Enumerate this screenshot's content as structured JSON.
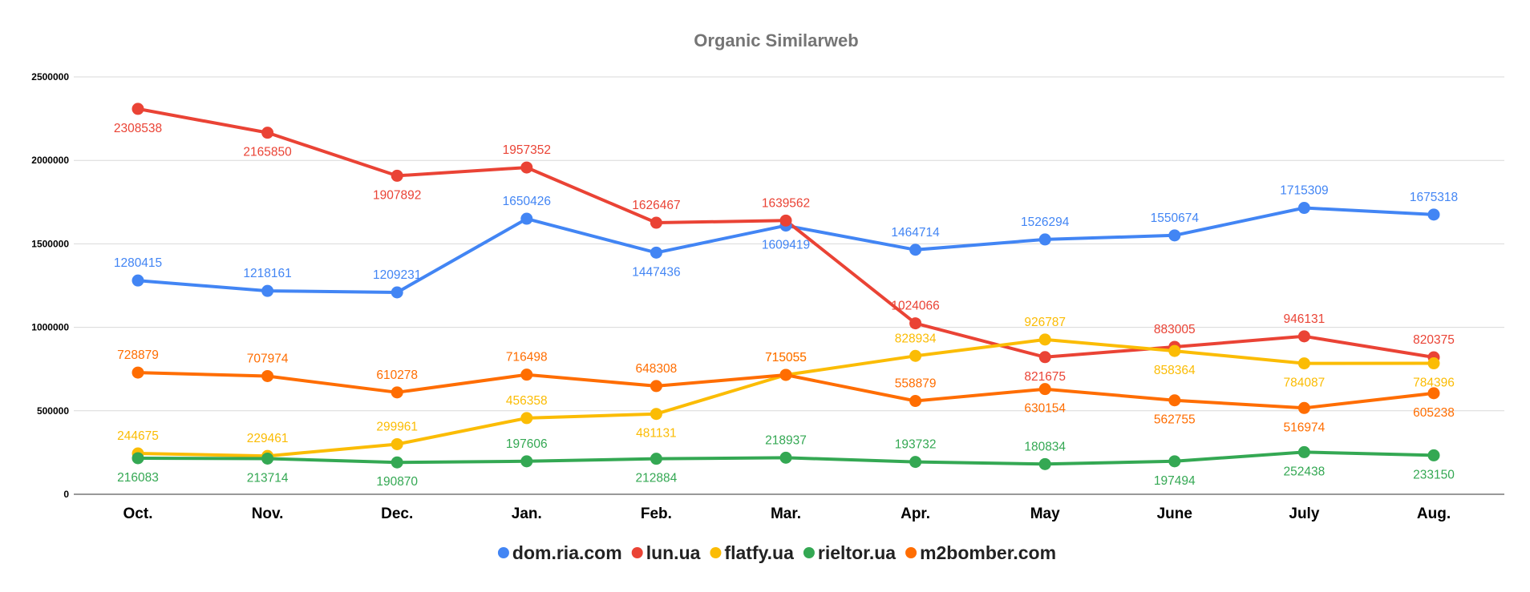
{
  "chart_data": {
    "type": "line",
    "title": "Organic Similarweb",
    "xlabel": "",
    "ylabel": "",
    "ylim": [
      0,
      2500000
    ],
    "yticks": [
      0,
      500000,
      1000000,
      1500000,
      2000000,
      2500000
    ],
    "grid": true,
    "legend_position": "bottom",
    "categories": [
      "Oct.",
      "Nov.",
      "Dec.",
      "Jan.",
      "Feb.",
      "Mar.",
      "Apr.",
      "May",
      "June",
      "July",
      "Aug."
    ],
    "series": [
      {
        "name": "dom.ria.com",
        "color": "#4285f4",
        "values": [
          1280415,
          1218161,
          1209231,
          1650426,
          1447436,
          1609419,
          1464714,
          1526294,
          1550674,
          1715309,
          1675318
        ],
        "label_pos": [
          "above",
          "above",
          "above",
          "above",
          "below",
          "below",
          "above",
          "above",
          "above",
          "above",
          "above"
        ]
      },
      {
        "name": "lun.ua",
        "color": "#ea4335",
        "values": [
          2308538,
          2165850,
          1907892,
          1957352,
          1626467,
          1639562,
          1024066,
          821675,
          883005,
          946131,
          820375
        ],
        "label_pos": [
          "below",
          "below",
          "below",
          "above",
          "above",
          "above",
          "above",
          "below",
          "above",
          "above",
          "above"
        ]
      },
      {
        "name": "flatfy.ua",
        "color": "#fbbc04",
        "values": [
          244675,
          229461,
          299961,
          456358,
          481131,
          715055,
          828934,
          926787,
          858364,
          784087,
          784396
        ],
        "label_pos": [
          "above",
          "above",
          "above",
          "above",
          "below",
          "above",
          "above",
          "above",
          "below",
          "below",
          "below"
        ]
      },
      {
        "name": "rieltor.ua",
        "color": "#34a853",
        "values": [
          216083,
          213714,
          190870,
          197606,
          212884,
          218937,
          193732,
          180834,
          197494,
          252438,
          233150
        ],
        "label_pos": [
          "below",
          "below",
          "below",
          "above",
          "below",
          "above",
          "above",
          "above",
          "below",
          "below",
          "below"
        ]
      },
      {
        "name": "m2bomber.com",
        "color": "#ff6d01",
        "values": [
          728879,
          707974,
          610278,
          716498,
          648308,
          715055,
          558879,
          630154,
          562755,
          516974,
          605238
        ],
        "label_pos": [
          "above",
          "above",
          "above",
          "above",
          "above",
          "above",
          "above",
          "below",
          "below",
          "below",
          "below"
        ]
      }
    ]
  }
}
